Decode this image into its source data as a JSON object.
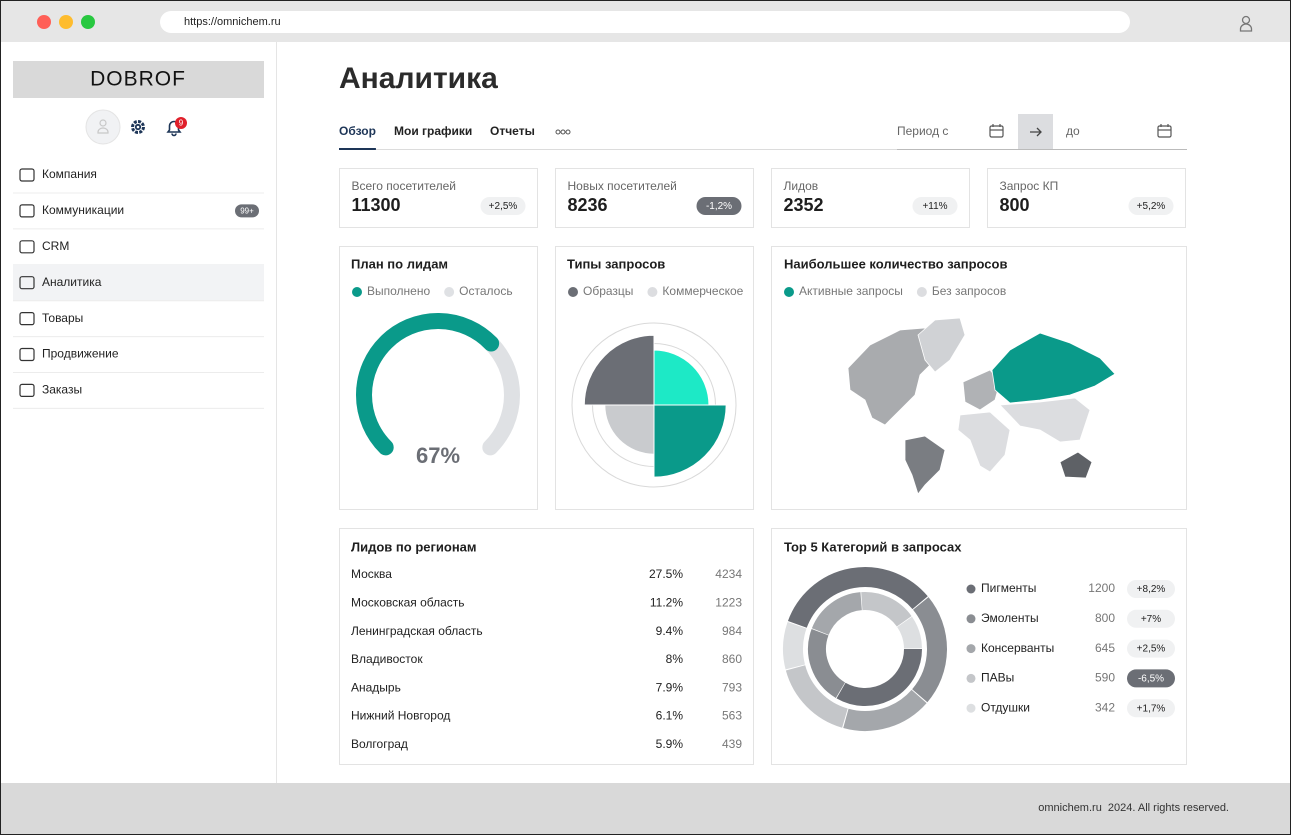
{
  "browser": {
    "url": "https://omnichem.ru"
  },
  "sidebar": {
    "logo": "DOBROF",
    "notifications": "9",
    "menu": [
      {
        "label": "Компания"
      },
      {
        "label": "Коммуникации",
        "badge": "99+"
      },
      {
        "label": "CRM"
      },
      {
        "label": "Аналитика",
        "active": true
      },
      {
        "label": "Товары"
      },
      {
        "label": "Продвижение"
      },
      {
        "label": "Заказы"
      }
    ]
  },
  "header": {
    "title": "Аналитика",
    "tabs": [
      "Обзор",
      "Мои графики",
      "Отчеты"
    ],
    "active_tab": 0,
    "period_from": "Период с",
    "period_to": "до"
  },
  "stats": [
    {
      "label": "Всего посетителей",
      "value": 11300,
      "change": "+2,5%"
    },
    {
      "label": "Новых посетителей",
      "value": 8236,
      "change": "-1,2%"
    },
    {
      "label": "Лидов",
      "value": 2352,
      "change": "+11%"
    },
    {
      "label": "Запрос КП",
      "value": 800,
      "change": "+5,2%"
    }
  ],
  "plan": {
    "title": "План по лидам",
    "legend": [
      {
        "name": "Выполнено",
        "color": "#0a9a8a"
      },
      {
        "name": "Осталось",
        "color": "#dfe1e4"
      }
    ],
    "value": 67,
    "value_label": "67%"
  },
  "request_types": {
    "title": "Типы запросов",
    "legend": [
      {
        "name": "Образцы",
        "color": "#6b6e75"
      },
      {
        "name": "Коммерческое",
        "color": "#dcdde0"
      }
    ],
    "segments": [
      {
        "value": 67,
        "color": "#1de9c6"
      },
      {
        "value": 88,
        "color": "#0a9a8a"
      },
      {
        "value": 60,
        "color": "#c9cbce"
      },
      {
        "value": 85,
        "color": "#6b6e75"
      }
    ],
    "rlim": [
      0,
      100
    ],
    "rticks": [
      25,
      50,
      75,
      100
    ]
  },
  "map": {
    "title": "Наибольшее количество запросов",
    "legend": [
      {
        "name": "Активные запросы",
        "color": "#0a9a8a"
      },
      {
        "name": "Без запросов",
        "color": "#dcdde0"
      }
    ]
  },
  "regions": {
    "title": "Лидов по регионам",
    "rows": [
      [
        "Москва",
        "27.5%",
        4234
      ],
      [
        "Московская область",
        "11.2%",
        1223
      ],
      [
        "Ленинградская область",
        "9.4%",
        984
      ],
      [
        "Владивосток",
        "8%",
        860
      ],
      [
        "Анадырь",
        "7.9%",
        793
      ],
      [
        "Нижний Новгород",
        "6.1%",
        563
      ],
      [
        "Волгоград",
        "5.9%",
        439
      ]
    ]
  },
  "top_categories": {
    "title": "Top 5 Категорий в запросах",
    "items": [
      {
        "name": "Пигменты",
        "value": 1200,
        "change": "+8,2%",
        "color": "#6b6e75"
      },
      {
        "name": "Эмоленты",
        "value": 800,
        "change": "+7%",
        "color": "#8a8d92"
      },
      {
        "name": "Консерванты",
        "value": 645,
        "change": "+2,5%",
        "color": "#a4a7ab"
      },
      {
        "name": "ПАВы",
        "value": 590,
        "change": "-6,5%",
        "color": "#c4c6c9"
      },
      {
        "name": "Отдушки",
        "value": 342,
        "change": "+1,7%",
        "color": "#dddfe1"
      }
    ]
  },
  "footer": {
    "text": "omnichem.ru  2024. All rights reserved."
  }
}
